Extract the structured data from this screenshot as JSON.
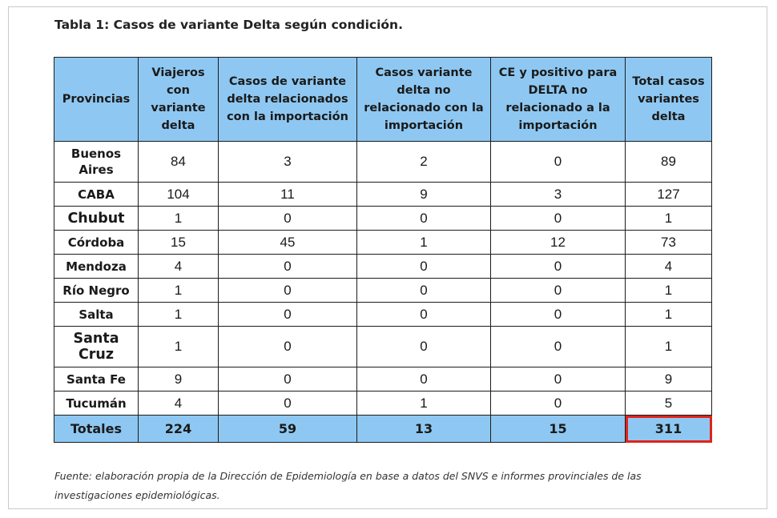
{
  "title": "Tabla 1: Casos de variante Delta según condición.",
  "table": {
    "columns": [
      "Provincias",
      "Viajeros con variante delta",
      "Casos de variante delta relacionados con la importación",
      "Casos variante delta no relacionado con la importación",
      "CE y positivo para DELTA no relacionado a la importación",
      "Total casos variantes delta"
    ],
    "rows": [
      [
        "Buenos Aires",
        "84",
        "3",
        "2",
        "0",
        "89"
      ],
      [
        "CABA",
        "104",
        "11",
        "9",
        "3",
        "127"
      ],
      [
        "Chubut",
        "1",
        "0",
        "0",
        "0",
        "1"
      ],
      [
        "Córdoba",
        "15",
        "45",
        "1",
        "12",
        "73"
      ],
      [
        "Mendoza",
        "4",
        "0",
        "0",
        "0",
        "4"
      ],
      [
        "Río Negro",
        "1",
        "0",
        "0",
        "0",
        "1"
      ],
      [
        "Salta",
        "1",
        "0",
        "0",
        "0",
        "1"
      ],
      [
        "Santa Cruz",
        "1",
        "0",
        "0",
        "0",
        "1"
      ],
      [
        "Santa Fe",
        "9",
        "0",
        "0",
        "0",
        "9"
      ],
      [
        "Tucumán",
        "4",
        "0",
        "1",
        "0",
        "5"
      ]
    ],
    "totals": [
      "Totales",
      "224",
      "59",
      "13",
      "15",
      "311"
    ],
    "highlight_color": "#e0231b",
    "header_color": "#8ec8f2"
  },
  "source": "Fuente: elaboración propia de la Dirección de Epidemiología en base a datos del SNVS e informes provinciales de las investigaciones epidemiológicas."
}
